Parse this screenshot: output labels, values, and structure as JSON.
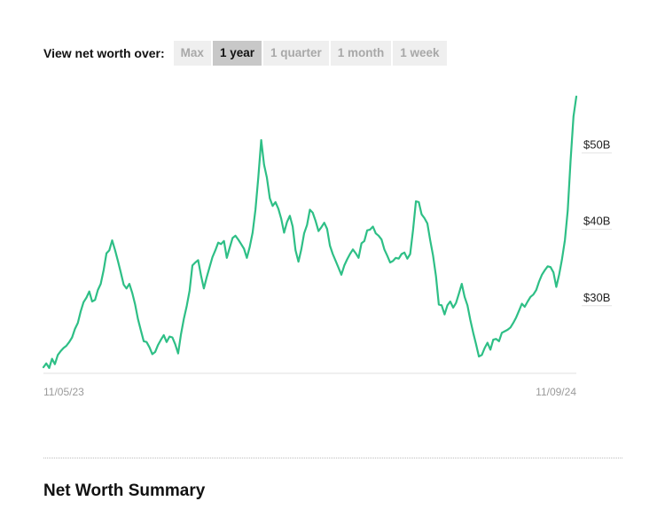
{
  "controls": {
    "label": "View net worth over:",
    "ranges": [
      "Max",
      "1 year",
      "1 quarter",
      "1 month",
      "1 week"
    ],
    "active": "1 year"
  },
  "colors": {
    "line": "#2ebf86",
    "active_bg": "#c8c8c8",
    "inactive_bg": "#efefef"
  },
  "chart_data": {
    "type": "line",
    "x_tick_labels": [
      "11/05/23",
      "11/09/24"
    ],
    "y_tick_labels": [
      "$30B",
      "$40B",
      "$50B"
    ],
    "y_ticks": [
      30,
      40,
      50
    ],
    "ylim": [
      20,
      57
    ],
    "grid": false,
    "series": [
      {
        "values": [
          20.8,
          21.3,
          20.7,
          21.9,
          21.2,
          22.4,
          22.9,
          23.3,
          23.6,
          24.1,
          24.7,
          25.8,
          26.6,
          28.1,
          29.3,
          29.9,
          30.7,
          29.4,
          29.6,
          30.9,
          31.7,
          33.5,
          35.7,
          36.1,
          37.4,
          36.1,
          34.7,
          33.2,
          31.6,
          31.1,
          31.7,
          30.5,
          29.0,
          27.1,
          25.6,
          24.2,
          24.1,
          23.4,
          22.5,
          22.8,
          23.7,
          24.4,
          25.0,
          24.1,
          24.8,
          24.7,
          23.8,
          22.6,
          25.1,
          27.1,
          28.8,
          30.8,
          34.1,
          34.5,
          34.8,
          32.8,
          31.1,
          32.6,
          33.9,
          35.2,
          36.1,
          37.1,
          36.9,
          37.3,
          35.1,
          36.4,
          37.7,
          38.0,
          37.5,
          36.9,
          36.3,
          35.1,
          36.5,
          38.4,
          41.4,
          45.6,
          50.5,
          47.3,
          45.6,
          42.9,
          41.9,
          42.4,
          41.5,
          40.2,
          38.4,
          39.8,
          40.6,
          39.2,
          36.1,
          34.6,
          36.2,
          38.3,
          39.4,
          41.4,
          41.0,
          39.9,
          38.6,
          39.1,
          39.7,
          38.9,
          36.7,
          35.6,
          34.7,
          33.8,
          32.9,
          34.1,
          34.9,
          35.6,
          36.2,
          35.7,
          35.1,
          37.0,
          37.3,
          38.7,
          38.8,
          39.2,
          38.3,
          38.0,
          37.5,
          36.2,
          35.4,
          34.5,
          34.7,
          35.1,
          35.0,
          35.6,
          35.8,
          35.0,
          35.6,
          38.7,
          42.5,
          42.4,
          40.8,
          40.3,
          39.6,
          37.4,
          35.4,
          32.7,
          29.0,
          28.9,
          27.7,
          28.9,
          29.4,
          28.6,
          29.2,
          30.4,
          31.7,
          30.0,
          28.9,
          27.0,
          25.3,
          23.8,
          22.2,
          22.4,
          23.3,
          24.0,
          23.1,
          24.4,
          24.5,
          24.2,
          25.3,
          25.5,
          25.7,
          26.0,
          26.6,
          27.3,
          28.2,
          29.1,
          28.7,
          29.4,
          30.0,
          30.3,
          30.9,
          32.0,
          32.9,
          33.5,
          34.0,
          33.9,
          33.2,
          31.3,
          32.9,
          34.9,
          37.4,
          41.3,
          47.8,
          53.6,
          56.2
        ]
      }
    ]
  },
  "summary": {
    "title": "Net Worth Summary"
  }
}
